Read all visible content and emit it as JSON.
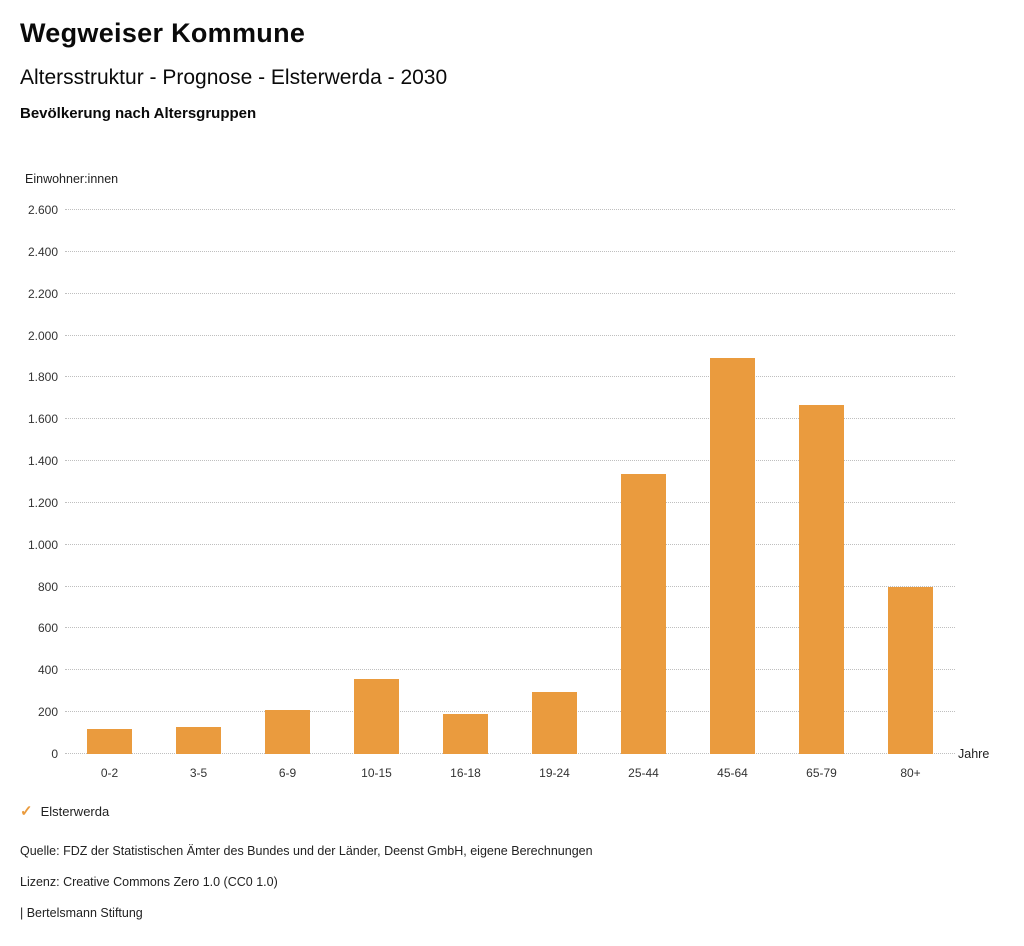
{
  "header": {
    "title": "Wegweiser Kommune",
    "subtitle": "Altersstruktur - Prognose - Elsterwerda - 2030",
    "caption": "Bevölkerung nach Altersgruppen"
  },
  "chart_data": {
    "type": "bar",
    "title": "Bevölkerung nach Altersgruppen",
    "series_name": "Elsterwerda",
    "xlabel": "Jahre",
    "ylabel": "Einwohner:innen",
    "categories": [
      "0-2",
      "3-5",
      "6-9",
      "10-15",
      "16-18",
      "19-24",
      "25-44",
      "45-64",
      "65-79",
      "80+"
    ],
    "values": [
      120,
      130,
      210,
      360,
      190,
      295,
      1340,
      1895,
      1670,
      800
    ],
    "ylim": [
      0,
      2600
    ],
    "grid": "dotted-horizontal",
    "legend_position": "bottom-left",
    "bar_color": "#EA9B3E",
    "yticks": [
      {
        "value": 0,
        "label": "0"
      },
      {
        "value": 200,
        "label": "200"
      },
      {
        "value": 400,
        "label": "400"
      },
      {
        "value": 600,
        "label": "600"
      },
      {
        "value": 800,
        "label": "800"
      },
      {
        "value": 1000,
        "label": "1.000"
      },
      {
        "value": 1200,
        "label": "1.200"
      },
      {
        "value": 1400,
        "label": "1.400"
      },
      {
        "value": 1600,
        "label": "1.600"
      },
      {
        "value": 1800,
        "label": "1.800"
      },
      {
        "value": 2000,
        "label": "2.000"
      },
      {
        "value": 2200,
        "label": "2.200"
      },
      {
        "value": 2400,
        "label": "2.400"
      },
      {
        "value": 2600,
        "label": "2.600"
      }
    ]
  },
  "legend": {
    "label": "Elsterwerda",
    "checkmark_color": "#EA9B3E"
  },
  "footer": {
    "source": "Quelle: FDZ der Statistischen Ämter des Bundes und der Länder, Deenst GmbH, eigene Berechnungen",
    "license": "Lizenz: Creative Commons Zero 1.0 (CC0 1.0)",
    "attribution": "| Bertelsmann Stiftung"
  }
}
